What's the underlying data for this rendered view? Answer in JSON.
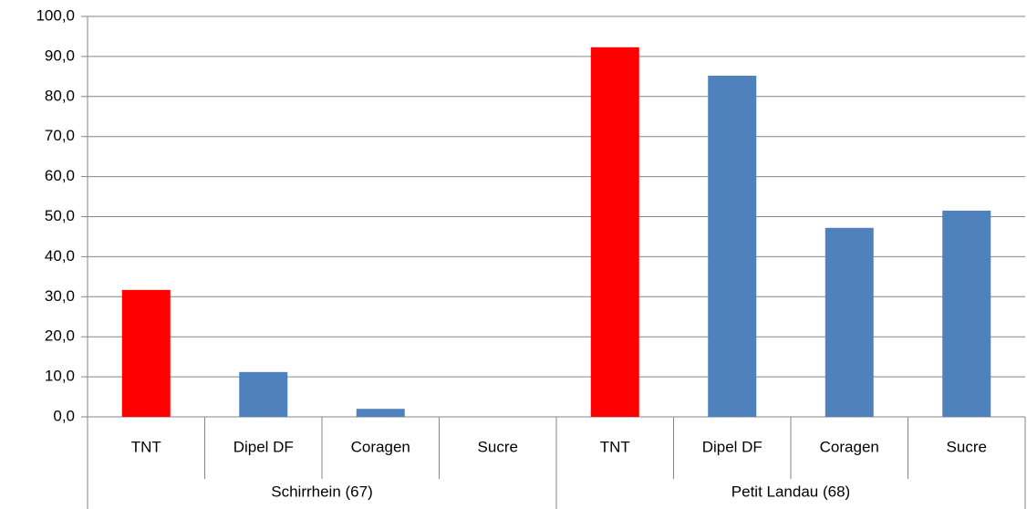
{
  "chart_data": {
    "type": "bar",
    "groups": [
      {
        "label": "Schirrhein (67)",
        "categories": [
          "TNT",
          "Dipel DF",
          "Coragen",
          "Sucre"
        ],
        "values": [
          31.7,
          11.2,
          2.0,
          0
        ],
        "colors": [
          "#ff0000",
          "#4f81bd",
          "#4f81bd",
          "#4f81bd"
        ]
      },
      {
        "label": "Petit Landau (68)",
        "categories": [
          "TNT",
          "Dipel DF",
          "Coragen",
          "Sucre"
        ],
        "values": [
          92.3,
          85.2,
          47.2,
          51.5
        ],
        "colors": [
          "#ff0000",
          "#4f81bd",
          "#4f81bd",
          "#4f81bd"
        ]
      }
    ],
    "ylim": [
      0,
      100
    ],
    "yticks": [
      {
        "value": 0,
        "label": "0,0"
      },
      {
        "value": 10,
        "label": "10,0"
      },
      {
        "value": 20,
        "label": "20,0"
      },
      {
        "value": 30,
        "label": "30,0"
      },
      {
        "value": 40,
        "label": "40,0"
      },
      {
        "value": 50,
        "label": "50,0"
      },
      {
        "value": 60,
        "label": "60,0"
      },
      {
        "value": 70,
        "label": "70,0"
      },
      {
        "value": 80,
        "label": "80,0"
      },
      {
        "value": 90,
        "label": "90,0"
      },
      {
        "value": 100,
        "label": "100,0"
      }
    ],
    "grid": true
  }
}
